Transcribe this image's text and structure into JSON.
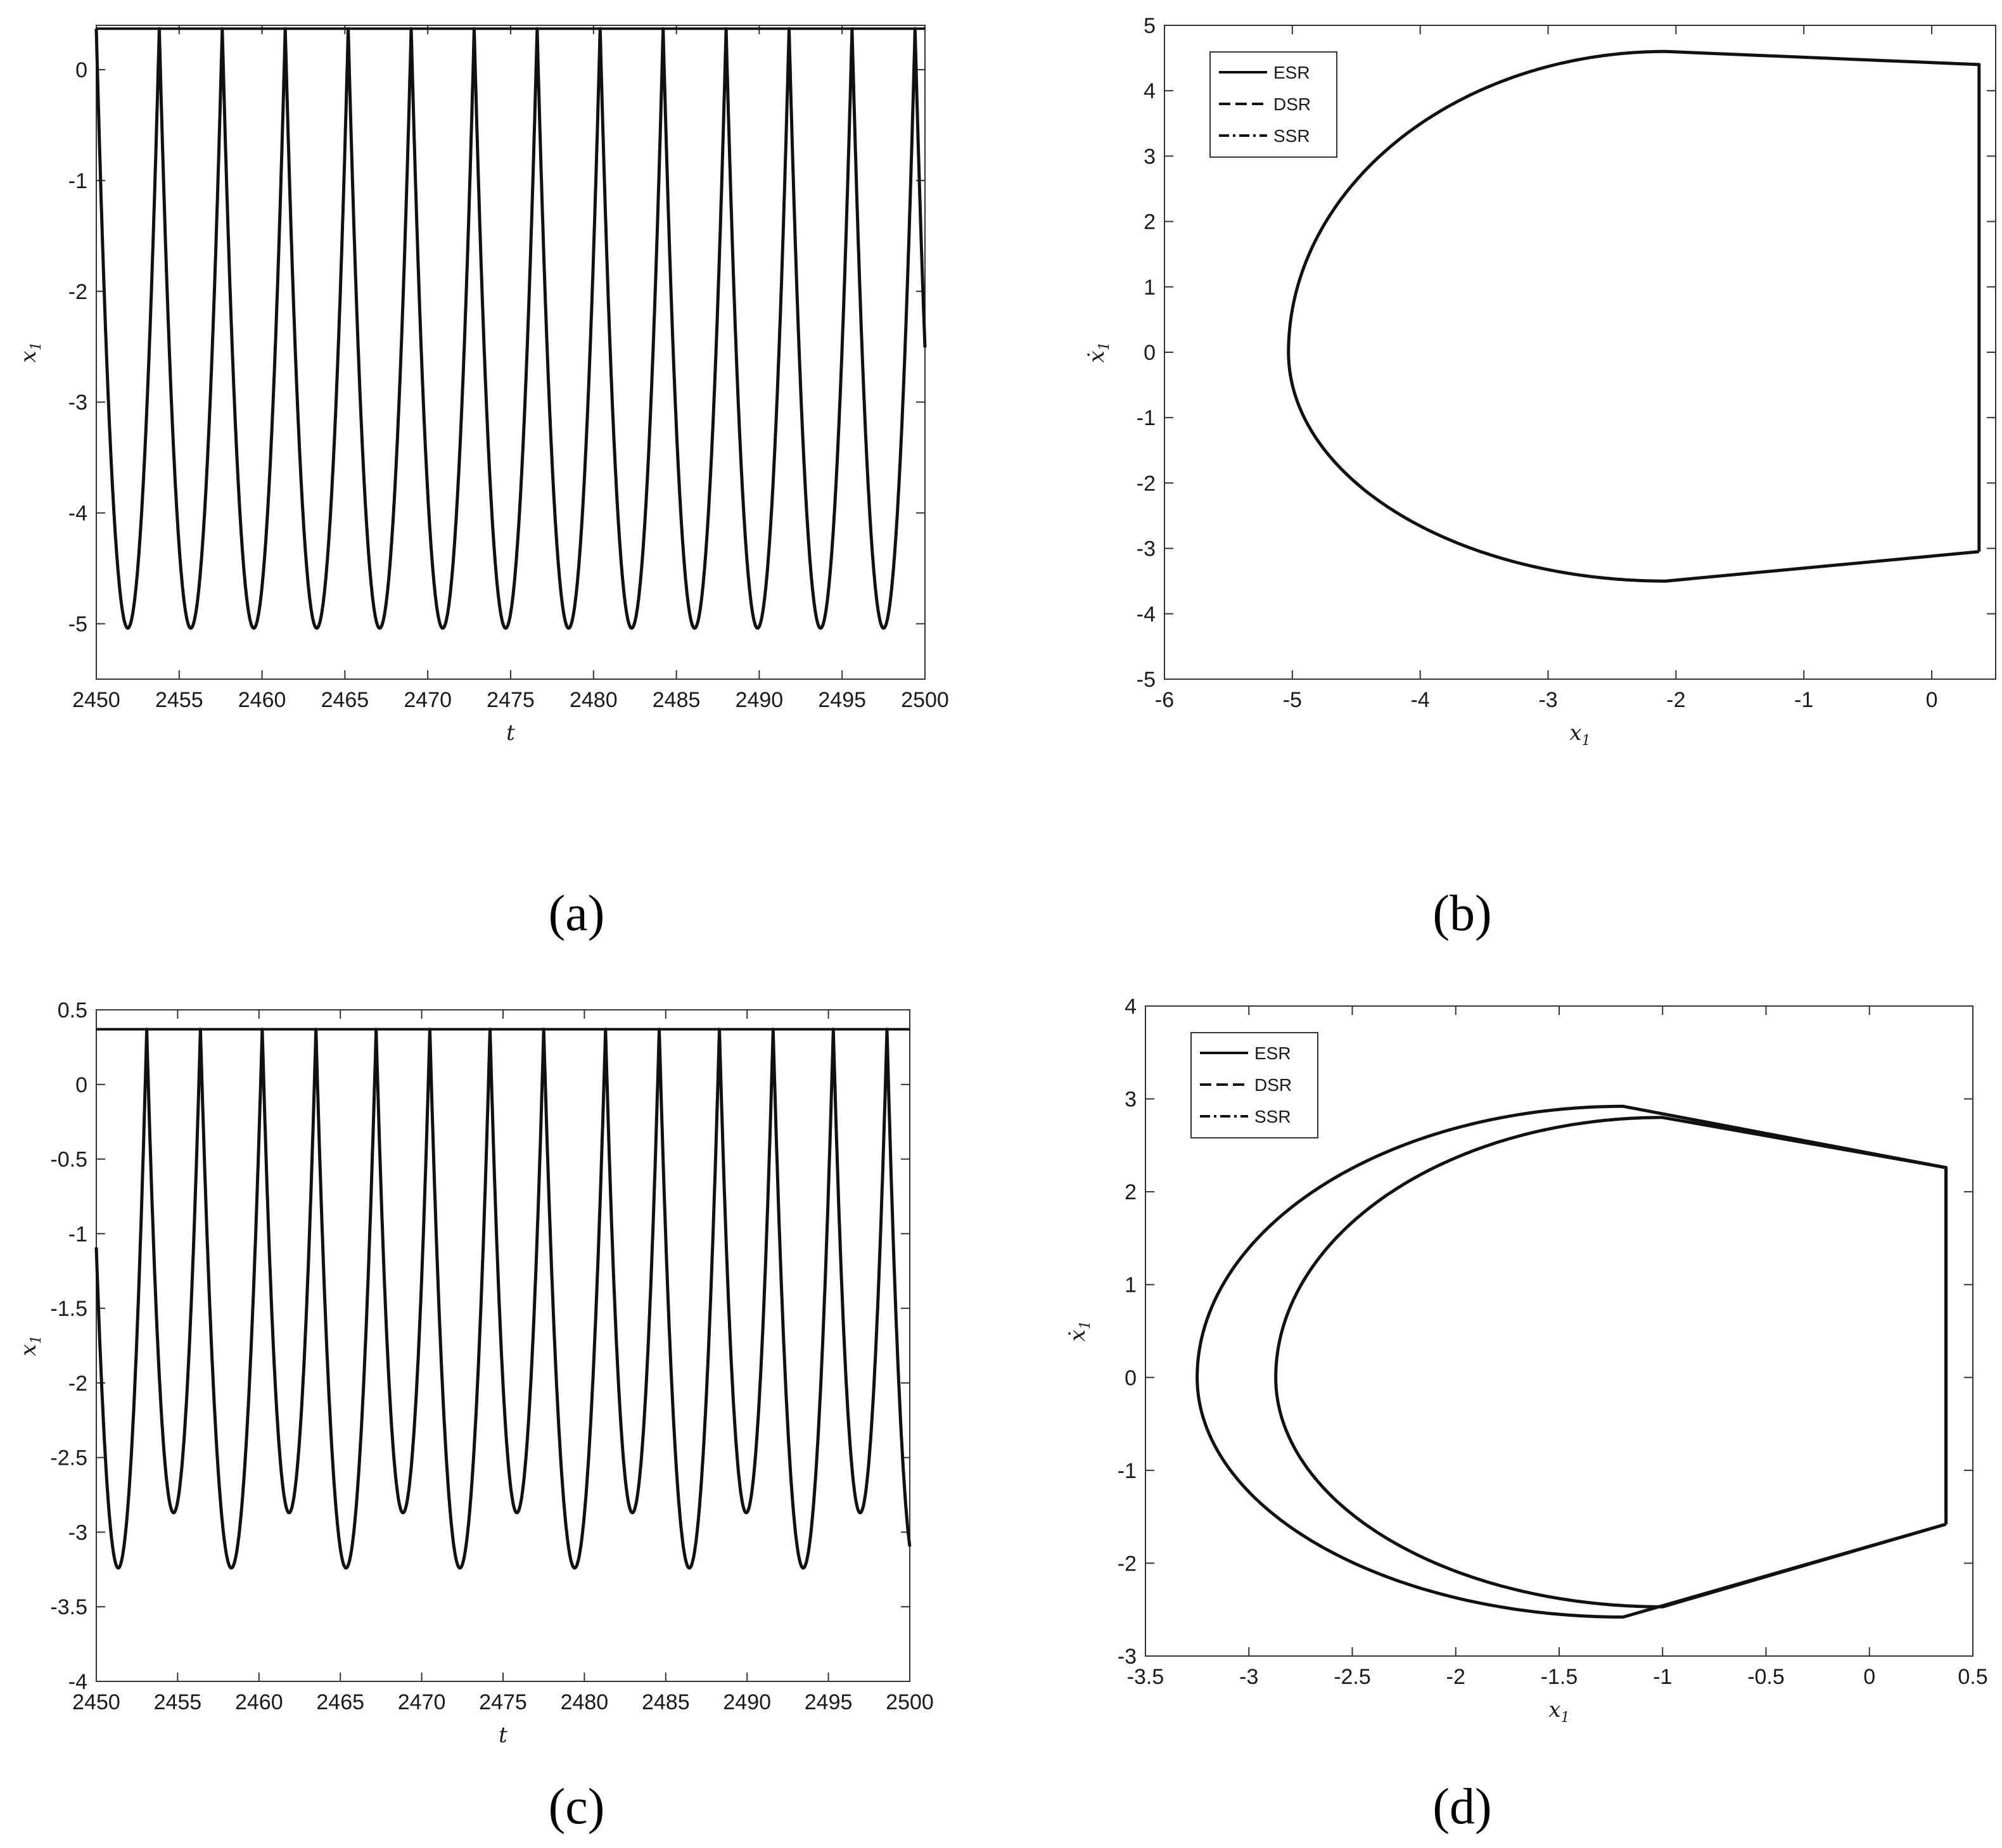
{
  "panels": [
    {
      "caption": "(a)",
      "chart_data": {
        "type": "line",
        "xlabel": "t",
        "ylabel": "x",
        "ylabel_sub": "1",
        "xlim": [
          2450,
          2500
        ],
        "ylim": [
          -5.5,
          0.4
        ],
        "xticks": [
          2450,
          2455,
          2460,
          2465,
          2470,
          2475,
          2480,
          2485,
          2490,
          2495,
          2500
        ],
        "yticks": [
          0,
          -1,
          -2,
          -3,
          -4,
          -5
        ],
        "grid": false,
        "series": [
          {
            "style": "solid",
            "period": 3.8,
            "peak": 0.37,
            "trough": -5.04,
            "first_peak": 2453.8,
            "threshold": 0.37
          }
        ]
      }
    },
    {
      "caption": "(b)",
      "chart_data": {
        "type": "line",
        "xlabel": "x",
        "xlabel_sub": "1",
        "ylabel": "ẋ",
        "ylabel_sub": "1",
        "xlim": [
          -6,
          0.5
        ],
        "ylim": [
          -5,
          5
        ],
        "xticks": [
          -6,
          -5,
          -4,
          -3,
          -2,
          -1,
          0
        ],
        "yticks": [
          5,
          4,
          3,
          2,
          1,
          0,
          -1,
          -2,
          -3,
          -4,
          -5
        ],
        "grid": false,
        "legend": {
          "position": "top-left",
          "entries": [
            "ESR",
            "DSR",
            "SSR"
          ],
          "styles": [
            "solid",
            "dashed",
            "dashdot"
          ]
        },
        "loops": [
          {
            "wall_x": 0.37,
            "left_x": -5.03,
            "top_y": 4.6,
            "bottom_y": -3.5,
            "wall_top": 4.4,
            "wall_bottom": -3.05
          }
        ]
      }
    },
    {
      "caption": "(c)",
      "chart_data": {
        "type": "line",
        "xlabel": "t",
        "ylabel": "x",
        "ylabel_sub": "1",
        "xlim": [
          2450,
          2500
        ],
        "ylim": [
          -4,
          0.5
        ],
        "xticks": [
          2450,
          2455,
          2460,
          2465,
          2470,
          2475,
          2480,
          2485,
          2490,
          2495,
          2500
        ],
        "yticks": [
          0.5,
          0,
          -0.5,
          -1,
          -1.5,
          -2,
          -2.5,
          -3,
          -3.5,
          -4
        ],
        "grid": false,
        "series": [
          {
            "style": "solid",
            "peaks": [
              2453.1,
              2456.4,
              2460.2,
              2463.5,
              2467.2,
              2470.5,
              2474.2,
              2477.5,
              2481.3,
              2484.6,
              2488.3,
              2491.6,
              2495.3,
              2498.6
            ],
            "peak": 0.37,
            "troughs_low": -3.24,
            "troughs_high": -2.87,
            "threshold": 0.37
          }
        ]
      }
    },
    {
      "caption": "(d)",
      "chart_data": {
        "type": "line",
        "xlabel": "x",
        "xlabel_sub": "1",
        "ylabel": "ẋ",
        "ylabel_sub": "1",
        "xlim": [
          -3.5,
          0.5
        ],
        "ylim": [
          -3,
          4
        ],
        "xticks": [
          -3.5,
          -3,
          -2.5,
          -2,
          -1.5,
          -1,
          -0.5,
          0,
          0.5
        ],
        "yticks": [
          4,
          3,
          2,
          1,
          0,
          -1,
          -2,
          -3
        ],
        "grid": false,
        "legend": {
          "position": "top-left",
          "entries": [
            "ESR",
            "DSR",
            "SSR"
          ],
          "styles": [
            "solid",
            "dashed",
            "dashdot"
          ]
        },
        "loops": [
          {
            "wall_x": 0.37,
            "left_x": -3.25,
            "top_y": 2.92,
            "bottom_y": -2.58,
            "wall_top": 2.26,
            "wall_bottom": -1.58
          },
          {
            "wall_x": 0.37,
            "left_x": -2.87,
            "top_y": 2.8,
            "bottom_y": -2.47,
            "wall_top": 2.26,
            "wall_bottom": -1.58
          }
        ]
      }
    }
  ]
}
